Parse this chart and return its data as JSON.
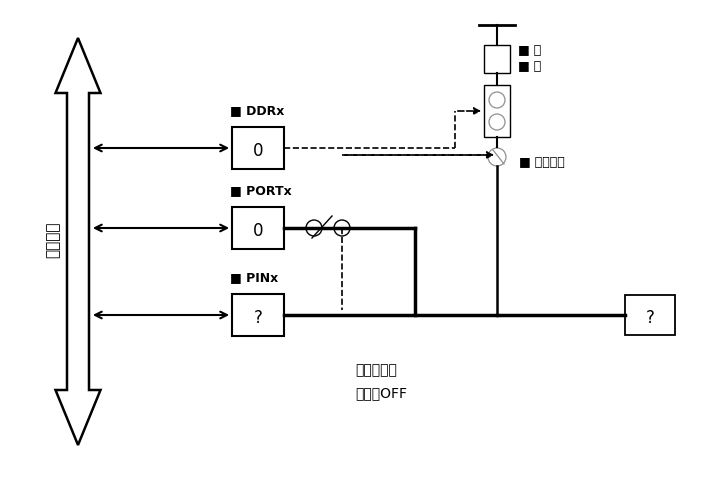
{
  "bg_color": "#ffffff",
  "line_color": "#000000",
  "gray_color": "#909090",
  "ddr_label": "DDRx",
  "port_label": "PORTx",
  "pin_label": "PINx",
  "ddr_val": "0",
  "port_val": "0",
  "pin_val": "?",
  "right_val": "?",
  "bus_label": "数据总线",
  "up_label": "上",
  "pull_label": "拉",
  "phys_label": "物理引脚",
  "dir_label": "方向：输入",
  "pull_off_label": "上拉：OFF",
  "figw": 7.05,
  "figh": 4.87,
  "dpi": 100
}
